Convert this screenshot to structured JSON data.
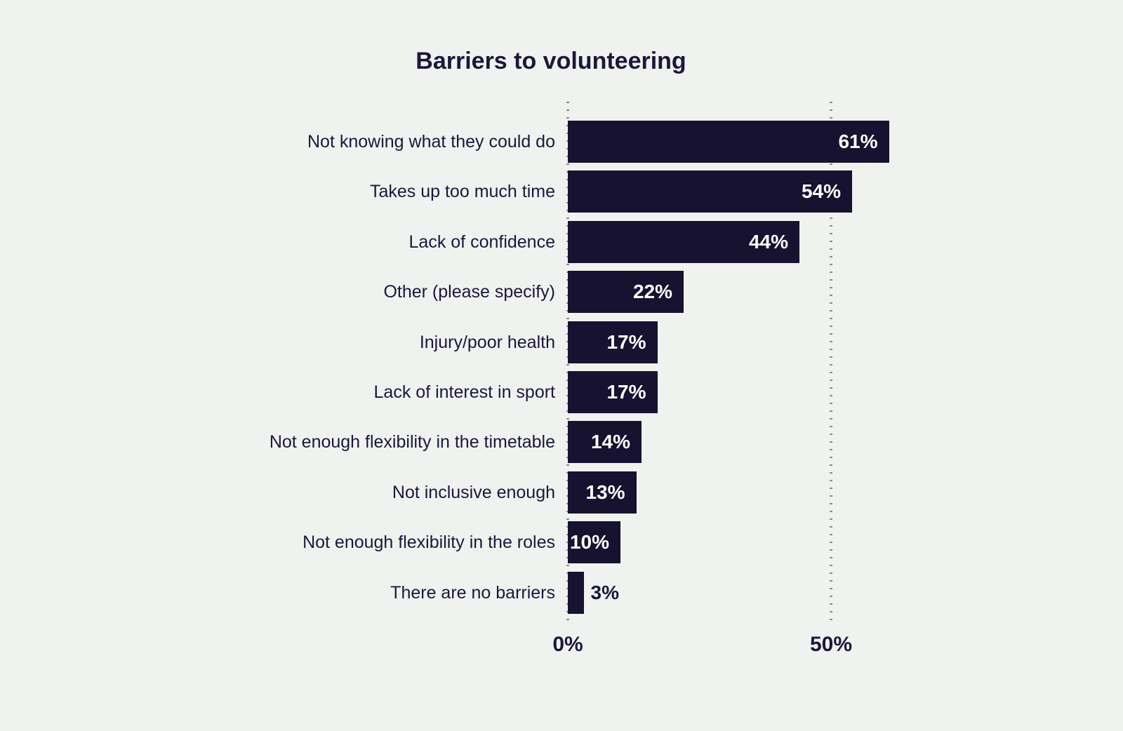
{
  "page": {
    "background": "#f0f2f0"
  },
  "chart_data": {
    "type": "bar",
    "orientation": "horizontal",
    "title": "Barriers to volunteering",
    "categories": [
      "Not knowing what they could do",
      "Takes up too much time",
      "Lack of confidence",
      "Other (please specify)",
      "Injury/poor health",
      "Lack of interest in sport",
      "Not enough flexibility in the timetable",
      "Not inclusive enough",
      "Not enough flexibility in the roles",
      "There are no barriers"
    ],
    "values": [
      61,
      54,
      44,
      22,
      17,
      17,
      14,
      13,
      10,
      3
    ],
    "value_labels": [
      "61%",
      "54%",
      "44%",
      "22%",
      "17%",
      "17%",
      "14%",
      "13%",
      "10%",
      "3%"
    ],
    "xlabel": "",
    "ylabel": "",
    "xlim": [
      0,
      100
    ],
    "x_ticks": [
      {
        "value": 0,
        "label": "0%"
      },
      {
        "value": 50,
        "label": "50%"
      }
    ],
    "grid": "vertical-dotted-at-ticks",
    "legend": "none",
    "colors": {
      "bar": "#161230",
      "title_text": "#1c173a",
      "category_text": "#1c173a",
      "value_label_inside": "#ffffff",
      "value_label_outside": "#1c173a",
      "axis_text": "#1c173a",
      "grid_dot": "#8a8a8a",
      "background": "#f0f2f0"
    }
  }
}
